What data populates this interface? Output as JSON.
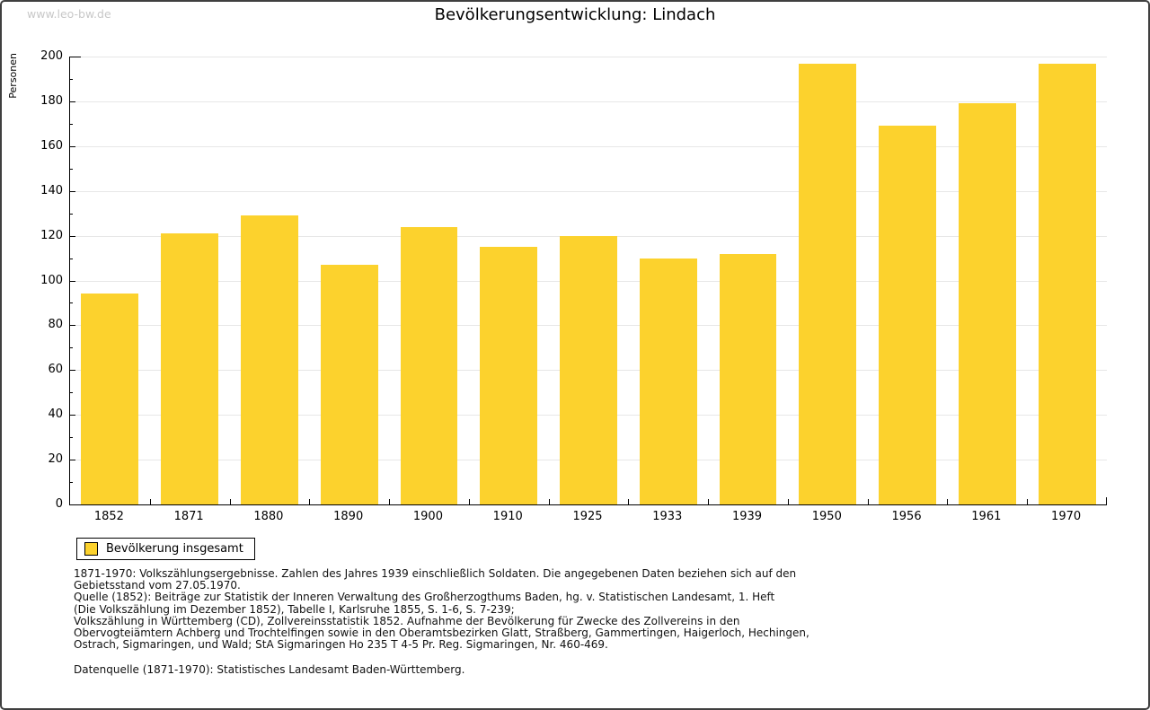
{
  "watermark": "www.leo-bw.de",
  "legend": {
    "label": "Bevölkerung insgesamt"
  },
  "colors": {
    "bar": "#FCD22D",
    "grid": "#E7E7E7",
    "axis": "#000000",
    "watermark": "#C8C8C8",
    "page_border": "#3F3F3F"
  },
  "chart_data": {
    "type": "bar",
    "title": "Bevölkerungsentwicklung: Lindach",
    "categories": [
      "1852",
      "1871",
      "1880",
      "1890",
      "1900",
      "1910",
      "1925",
      "1933",
      "1939",
      "1950",
      "1956",
      "1961",
      "1970"
    ],
    "values": [
      94,
      121,
      129,
      107,
      124,
      115,
      120,
      110,
      112,
      197,
      169,
      179,
      197
    ],
    "series": [
      {
        "name": "Bevölkerung insgesamt",
        "values": [
          94,
          121,
          129,
          107,
          124,
          115,
          120,
          110,
          112,
          197,
          169,
          179,
          197
        ]
      }
    ],
    "xlabel": "",
    "ylabel": "Personen",
    "ylim": [
      0,
      200
    ],
    "ytick_step": 20,
    "ytick_minor_step": 10,
    "grid": "horizontal-major",
    "legend_position": "bottom-left",
    "bar_color": "#FCD22D"
  },
  "notes": {
    "lines": [
      "1871-1970: Volkszählungsergebnisse. Zahlen des Jahres 1939 einschließlich Soldaten. Die angegebenen Daten beziehen sich auf den",
      "Gebietsstand vom 27.05.1970.",
      "Quelle (1852): Beiträge zur Statistik der Inneren Verwaltung des Großherzogthums Baden, hg. v. Statistischen Landesamt, 1. Heft",
      "(Die Volkszählung im Dezember 1852), Tabelle I, Karlsruhe 1855, S. 1-6, S. 7-239;",
      "Volkszählung in Württemberg (CD), Zollvereinsstatistik 1852. Aufnahme der Bevölkerung für Zwecke des Zollvereins in den",
      "Obervogteiämtern Achberg und Trochtelfingen sowie in den Oberamtsbezirken Glatt, Straßberg, Gammertingen, Haigerloch, Hechingen,",
      "Ostrach, Sigmaringen, und Wald; StA Sigmaringen Ho 235 T 4-5 Pr. Reg. Sigmaringen, Nr. 460-469."
    ],
    "datasource": "Datenquelle (1871-1970): Statistisches Landesamt Baden-Württemberg."
  }
}
